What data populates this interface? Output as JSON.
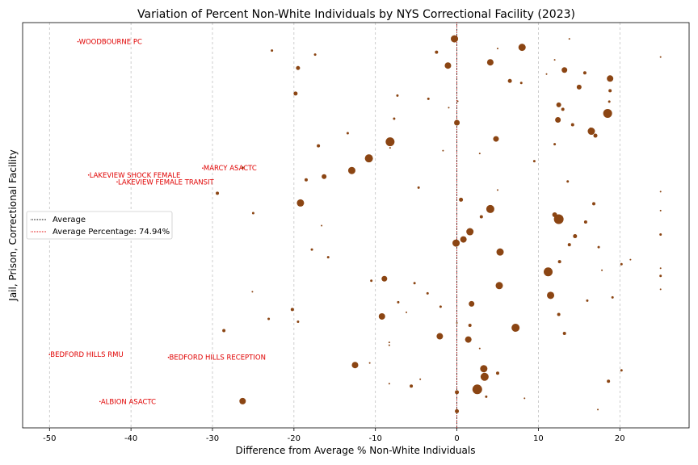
{
  "chart_data": {
    "type": "scatter",
    "title": "Variation of Percent Non-White Individuals by NYS Correctional Facility (2023)",
    "xlabel": "Difference from Average % Non-White Individuals",
    "ylabel": "Jail, Prison, Correctional Facility",
    "xlim": [
      -53.3,
      28.5
    ],
    "x_ticks": [
      -50,
      -40,
      -30,
      -20,
      -10,
      0,
      10,
      20
    ],
    "ylim": [
      0,
      100
    ],
    "y_ticks_shown": false,
    "grid": "x-dashed",
    "average_line_x": 0,
    "point_color": "#8B4513",
    "highlight_color": "#e00000",
    "legend": {
      "placement": "center-left",
      "entries": [
        "Average",
        "Average Percentage: 74.94%"
      ]
    },
    "annotations": [
      {
        "label": "WOODBOURNE PC",
        "x": -46.5,
        "y": 95.3
      },
      {
        "label": "LAKEVIEW SHOCK FEMALE",
        "x": -45.2,
        "y": 62.4
      },
      {
        "label": "MARCY ASACTC",
        "x": -31.2,
        "y": 64.1
      },
      {
        "label": "LAKEVIEW FEMALE TRANSIT",
        "x": -41.7,
        "y": 60.7
      },
      {
        "label": "BEDFORD HILLS RMU",
        "x": -50,
        "y": 18.1
      },
      {
        "label": "BEDFORD HILLS RECEPTION",
        "x": -35.4,
        "y": 17.4
      },
      {
        "label": "ALBION ASACTC",
        "x": -43.8,
        "y": 6.5
      }
    ],
    "points": [
      {
        "x": -0.3,
        "y": 96.0,
        "s": 4.5
      },
      {
        "x": 8.0,
        "y": 93.9,
        "s": 4.5
      },
      {
        "x": -22.7,
        "y": 93.1,
        "s": 1.5
      },
      {
        "x": -17.4,
        "y": 92.1,
        "s": 1.5
      },
      {
        "x": -2.5,
        "y": 92.7,
        "s": 2
      },
      {
        "x": 5.0,
        "y": 93.6,
        "s": 1
      },
      {
        "x": 13.8,
        "y": 96.0,
        "s": 1
      },
      {
        "x": 25.0,
        "y": 91.5,
        "s": 1
      },
      {
        "x": 4.1,
        "y": 90.2,
        "s": 4
      },
      {
        "x": -1.1,
        "y": 89.4,
        "s": 4
      },
      {
        "x": -19.5,
        "y": 88.8,
        "s": 2.5
      },
      {
        "x": 12.0,
        "y": 90.8,
        "s": 1
      },
      {
        "x": 13.2,
        "y": 88.3,
        "s": 3.5
      },
      {
        "x": 15.7,
        "y": 87.6,
        "s": 2
      },
      {
        "x": 11.0,
        "y": 87.3,
        "s": 1
      },
      {
        "x": 18.8,
        "y": 86.2,
        "s": 4
      },
      {
        "x": 6.5,
        "y": 85.6,
        "s": 2.5
      },
      {
        "x": 7.9,
        "y": 85.1,
        "s": 1.5
      },
      {
        "x": 15.0,
        "y": 84.1,
        "s": 3
      },
      {
        "x": 18.8,
        "y": 83.2,
        "s": 2
      },
      {
        "x": -19.8,
        "y": 82.5,
        "s": 2.5
      },
      {
        "x": -7.3,
        "y": 82.0,
        "s": 1.5
      },
      {
        "x": -3.5,
        "y": 81.2,
        "s": 1.5
      },
      {
        "x": 18.7,
        "y": 80.5,
        "s": 1.5
      },
      {
        "x": 12.5,
        "y": 79.7,
        "s": 3
      },
      {
        "x": -1.0,
        "y": 79.0,
        "s": 1
      },
      {
        "x": 0.1,
        "y": 80.6,
        "s": 1
      },
      {
        "x": 13.0,
        "y": 78.6,
        "s": 2
      },
      {
        "x": 18.5,
        "y": 77.6,
        "s": 5.5
      },
      {
        "x": 12.4,
        "y": 76.0,
        "s": 3.5
      },
      {
        "x": -7.7,
        "y": 76.3,
        "s": 1.5
      },
      {
        "x": 0.0,
        "y": 75.3,
        "s": 3.5
      },
      {
        "x": 14.2,
        "y": 74.8,
        "s": 2
      },
      {
        "x": 16.4,
        "y": 73.8,
        "s": 1.5
      },
      {
        "x": 16.5,
        "y": 73.2,
        "s": 4.5
      },
      {
        "x": 17.0,
        "y": 72.1,
        "s": 2.5
      },
      {
        "x": -13.4,
        "y": 72.7,
        "s": 1.5
      },
      {
        "x": 4.8,
        "y": 71.3,
        "s": 3.5
      },
      {
        "x": -8.2,
        "y": 70.6,
        "s": 5.5
      },
      {
        "x": 12.0,
        "y": 70.0,
        "s": 1.5
      },
      {
        "x": -17.0,
        "y": 69.6,
        "s": 2
      },
      {
        "x": -8.2,
        "y": 69.1,
        "s": 1
      },
      {
        "x": -1.7,
        "y": 68.4,
        "s": 1
      },
      {
        "x": 2.8,
        "y": 67.7,
        "s": 1
      },
      {
        "x": -10.8,
        "y": 66.5,
        "s": 5
      },
      {
        "x": 9.5,
        "y": 65.8,
        "s": 1.5
      },
      {
        "x": -26.3,
        "y": 64.2,
        "s": 1.5
      },
      {
        "x": -12.9,
        "y": 63.5,
        "s": 4.5
      },
      {
        "x": -16.3,
        "y": 62.0,
        "s": 3
      },
      {
        "x": -18.5,
        "y": 61.2,
        "s": 2
      },
      {
        "x": 13.6,
        "y": 60.8,
        "s": 1.5
      },
      {
        "x": -4.7,
        "y": 59.3,
        "s": 1.5
      },
      {
        "x": 5.0,
        "y": 58.7,
        "s": 1
      },
      {
        "x": 25.0,
        "y": 58.3,
        "s": 1
      },
      {
        "x": -29.4,
        "y": 57.9,
        "s": 2
      },
      {
        "x": 0.5,
        "y": 56.3,
        "s": 2.5
      },
      {
        "x": -19.2,
        "y": 55.5,
        "s": 4.5
      },
      {
        "x": 16.8,
        "y": 55.3,
        "s": 2
      },
      {
        "x": 4.1,
        "y": 54.0,
        "s": 5
      },
      {
        "x": 25.0,
        "y": 53.6,
        "s": 1
      },
      {
        "x": -25.0,
        "y": 53.0,
        "s": 1.5
      },
      {
        "x": 12.0,
        "y": 52.6,
        "s": 3
      },
      {
        "x": 12.5,
        "y": 51.5,
        "s": 6
      },
      {
        "x": 3.0,
        "y": 52.1,
        "s": 2
      },
      {
        "x": 15.8,
        "y": 50.8,
        "s": 2
      },
      {
        "x": -16.6,
        "y": 49.9,
        "s": 1
      },
      {
        "x": 1.6,
        "y": 48.4,
        "s": 4.5
      },
      {
        "x": 25.0,
        "y": 47.7,
        "s": 1.5
      },
      {
        "x": 14.5,
        "y": 47.3,
        "s": 2.5
      },
      {
        "x": 0.8,
        "y": 46.5,
        "s": 4
      },
      {
        "x": -0.1,
        "y": 45.6,
        "s": 4.5
      },
      {
        "x": 13.8,
        "y": 45.2,
        "s": 2
      },
      {
        "x": 17.4,
        "y": 44.6,
        "s": 1.5
      },
      {
        "x": -17.8,
        "y": 44.0,
        "s": 1.5
      },
      {
        "x": 5.3,
        "y": 43.4,
        "s": 4.5
      },
      {
        "x": 21.3,
        "y": 41.5,
        "s": 1
      },
      {
        "x": -15.8,
        "y": 42.1,
        "s": 1.5
      },
      {
        "x": 12.6,
        "y": 41.0,
        "s": 2
      },
      {
        "x": 20.2,
        "y": 40.4,
        "s": 1.5
      },
      {
        "x": 11.2,
        "y": 38.5,
        "s": 5.5
      },
      {
        "x": 17.8,
        "y": 38.9,
        "s": 1
      },
      {
        "x": 25.0,
        "y": 39.4,
        "s": 1
      },
      {
        "x": 25.0,
        "y": 37.5,
        "s": 1.5
      },
      {
        "x": -8.9,
        "y": 36.8,
        "s": 3.5
      },
      {
        "x": -10.5,
        "y": 36.3,
        "s": 1.5
      },
      {
        "x": -5.2,
        "y": 35.7,
        "s": 1.5
      },
      {
        "x": 5.2,
        "y": 35.1,
        "s": 4.5
      },
      {
        "x": 25.0,
        "y": 34.2,
        "s": 1
      },
      {
        "x": -25.1,
        "y": 33.6,
        "s": 1
      },
      {
        "x": -3.6,
        "y": 33.2,
        "s": 1.5
      },
      {
        "x": 11.5,
        "y": 32.7,
        "s": 4.5
      },
      {
        "x": 19.1,
        "y": 32.2,
        "s": 1.5
      },
      {
        "x": 16.0,
        "y": 31.4,
        "s": 1.5
      },
      {
        "x": -7.2,
        "y": 31.0,
        "s": 1.5
      },
      {
        "x": 1.8,
        "y": 30.6,
        "s": 3.5
      },
      {
        "x": -2.0,
        "y": 29.9,
        "s": 1.5
      },
      {
        "x": -20.2,
        "y": 29.2,
        "s": 2
      },
      {
        "x": -6.2,
        "y": 28.5,
        "s": 1
      },
      {
        "x": 12.5,
        "y": 28.0,
        "s": 2
      },
      {
        "x": -9.2,
        "y": 27.5,
        "s": 4
      },
      {
        "x": -23.1,
        "y": 26.9,
        "s": 1.5
      },
      {
        "x": -19.5,
        "y": 26.2,
        "s": 1.5
      },
      {
        "x": 0.0,
        "y": 25.9,
        "s": 1
      },
      {
        "x": 1.6,
        "y": 25.3,
        "s": 2
      },
      {
        "x": 7.2,
        "y": 24.7,
        "s": 5
      },
      {
        "x": -28.6,
        "y": 24.0,
        "s": 2
      },
      {
        "x": 13.2,
        "y": 23.3,
        "s": 2
      },
      {
        "x": -2.1,
        "y": 22.6,
        "s": 4
      },
      {
        "x": 1.4,
        "y": 21.8,
        "s": 4
      },
      {
        "x": -8.3,
        "y": 21.1,
        "s": 1
      },
      {
        "x": -8.3,
        "y": 20.4,
        "s": 1
      },
      {
        "x": 2.8,
        "y": 19.6,
        "s": 1
      },
      {
        "x": -12.5,
        "y": 15.5,
        "s": 4
      },
      {
        "x": -10.7,
        "y": 16.0,
        "s": 1
      },
      {
        "x": 3.3,
        "y": 14.6,
        "s": 4.5
      },
      {
        "x": 20.2,
        "y": 14.2,
        "s": 1.5
      },
      {
        "x": 5.0,
        "y": 13.5,
        "s": 2
      },
      {
        "x": 3.4,
        "y": 12.6,
        "s": 5
      },
      {
        "x": -4.5,
        "y": 12.0,
        "s": 1
      },
      {
        "x": 18.6,
        "y": 11.5,
        "s": 2
      },
      {
        "x": -8.3,
        "y": 10.9,
        "s": 1
      },
      {
        "x": -5.6,
        "y": 10.3,
        "s": 2
      },
      {
        "x": 2.5,
        "y": 9.5,
        "s": 6
      },
      {
        "x": 0.0,
        "y": 8.8,
        "s": 2.5
      },
      {
        "x": 3.6,
        "y": 7.7,
        "s": 1.5
      },
      {
        "x": 8.3,
        "y": 7.3,
        "s": 1
      },
      {
        "x": -26.3,
        "y": 6.6,
        "s": 4
      },
      {
        "x": 17.3,
        "y": 4.5,
        "s": 1
      },
      {
        "x": 0.0,
        "y": 4.1,
        "s": 2.5
      },
      {
        "x": -46.5,
        "y": 95.3,
        "s": 0.8,
        "h": true
      },
      {
        "x": -45.2,
        "y": 62.4,
        "s": 0.8,
        "h": true
      },
      {
        "x": -31.2,
        "y": 64.1,
        "s": 0.8,
        "h": true
      },
      {
        "x": -41.7,
        "y": 60.7,
        "s": 0.8,
        "h": true
      },
      {
        "x": -50.0,
        "y": 18.1,
        "s": 0.8,
        "h": true
      },
      {
        "x": -35.4,
        "y": 17.4,
        "s": 0.8,
        "h": true
      },
      {
        "x": -43.8,
        "y": 6.5,
        "s": 0.8,
        "h": true
      }
    ]
  }
}
